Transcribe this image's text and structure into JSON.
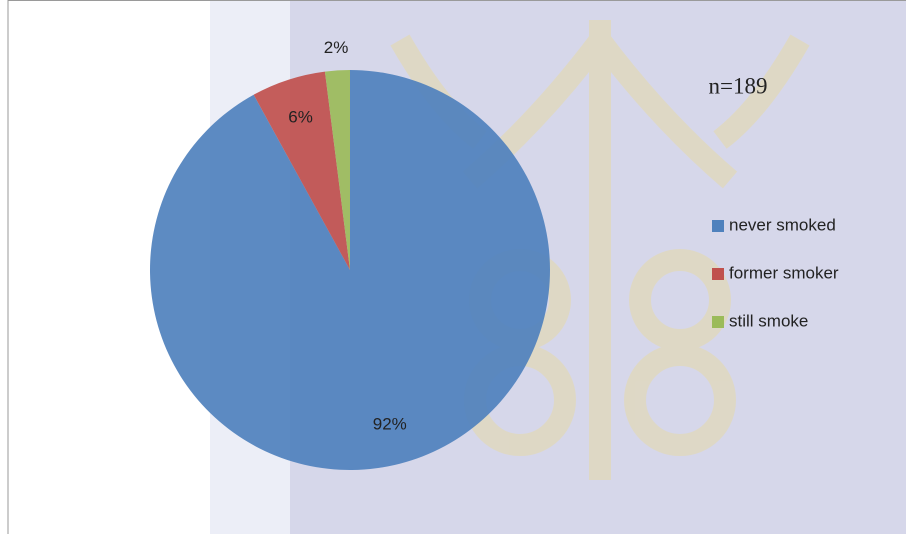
{
  "chart_data": {
    "type": "pie",
    "categories": [
      "never smoked",
      "former smoker",
      "still smoke"
    ],
    "values": [
      92,
      6,
      2
    ],
    "value_labels": [
      "92%",
      "6%",
      "2%"
    ],
    "colors": [
      "#4f81bd",
      "#c0504d",
      "#9bbb59"
    ],
    "annotation": "n=189",
    "legend": "right"
  }
}
